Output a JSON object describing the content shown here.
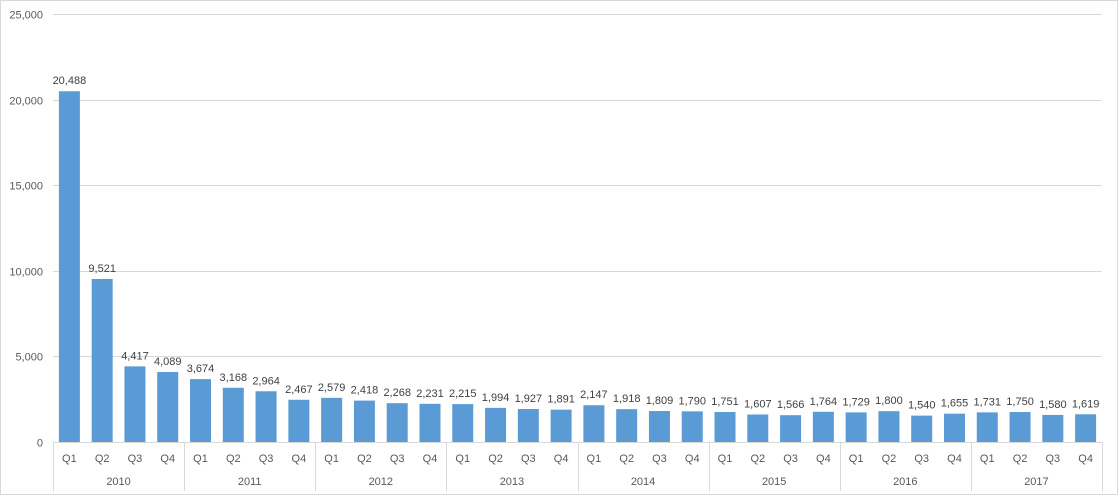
{
  "chart_data": {
    "type": "bar",
    "title": "",
    "xlabel": "",
    "ylabel": "",
    "ylim": [
      0,
      25000
    ],
    "yticks": [
      "0",
      "5,000",
      "10,000",
      "15,000",
      "20,000",
      "25,000"
    ],
    "ytick_values": [
      0,
      5000,
      10000,
      15000,
      20000,
      25000
    ],
    "grid": true,
    "legend": "none",
    "bar_color": "#5B9BD5",
    "groups": [
      "2010",
      "2011",
      "2012",
      "2013",
      "2014",
      "2015",
      "2016",
      "2017"
    ],
    "subcategories": [
      "Q1",
      "Q2",
      "Q3",
      "Q4"
    ],
    "values": [
      20488,
      9521,
      4417,
      4089,
      3674,
      3168,
      2964,
      2467,
      2579,
      2418,
      2268,
      2231,
      2215,
      1994,
      1927,
      1891,
      2147,
      1918,
      1809,
      1790,
      1751,
      1607,
      1566,
      1764,
      1729,
      1800,
      1540,
      1655,
      1731,
      1750,
      1580,
      1619
    ],
    "data_labels": [
      "20,488",
      "9,521",
      "4,417",
      "4,089",
      "3,674",
      "3,168",
      "2,964",
      "2,467",
      "2,579",
      "2,418",
      "2,268",
      "2,231",
      "2,215",
      "1,994",
      "1,927",
      "1,891",
      "2,147",
      "1,918",
      "1,809",
      "1,790",
      "1,751",
      "1,607",
      "1,566",
      "1,764",
      "1,729",
      "1,800",
      "1,540",
      "1,655",
      "1,731",
      "1,750",
      "1,580",
      "1,619"
    ]
  }
}
